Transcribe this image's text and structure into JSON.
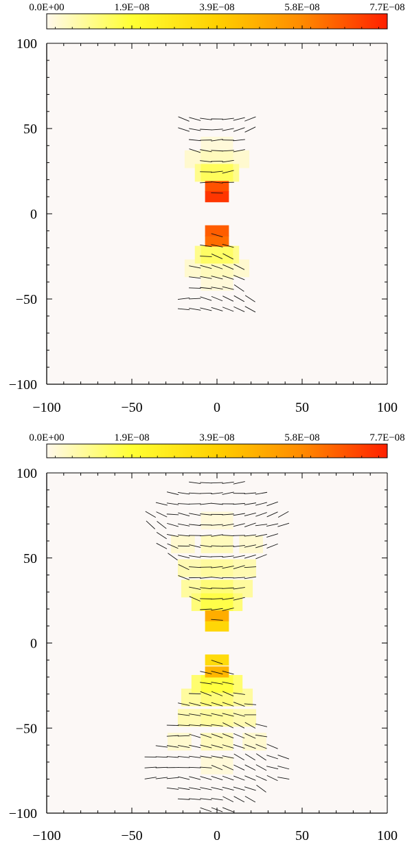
{
  "colorbar": {
    "tick_labels": [
      "0.0E+00",
      "1.9E−08",
      "3.9E−08",
      "5.8E−08",
      "7.7E−08"
    ],
    "colors": [
      "#fff8ec",
      "#ffff33",
      "#ffd000",
      "#ff8a00",
      "#ff2000"
    ],
    "range": [
      0,
      7.7e-08
    ]
  },
  "colors": {
    "background": "#fcf8f6",
    "axis": "#000000"
  },
  "chart_data": [
    {
      "type": "heatmap",
      "title": "",
      "xlabel": "",
      "ylabel": "",
      "xlim": [
        -100,
        100
      ],
      "ylim": [
        -100,
        100
      ],
      "xticks": [
        -100,
        -50,
        0,
        50,
        100
      ],
      "yticks": [
        -100,
        -50,
        0,
        50,
        100
      ],
      "x_tick_labels": [
        "−100",
        "−50",
        "0",
        "50",
        "100"
      ],
      "y_tick_labels": [
        "−100",
        "−50",
        "0",
        "50",
        "100"
      ],
      "cells": [
        {
          "x": 0,
          "y": 16,
          "value": 6.8e-08
        },
        {
          "x": 0,
          "y": 10,
          "value": 7.3e-08
        },
        {
          "x": 0,
          "y": -10,
          "value": 6.6e-08
        },
        {
          "x": 0,
          "y": -16,
          "value": 6.3e-08
        },
        {
          "x": 0,
          "y": 24,
          "value": 1.5e-08
        },
        {
          "x": -6,
          "y": 24,
          "value": 1e-08
        },
        {
          "x": 6,
          "y": 24,
          "value": 1e-08
        },
        {
          "x": 0,
          "y": 32,
          "value": 5e-09
        },
        {
          "x": -12,
          "y": 32,
          "value": 3e-09
        },
        {
          "x": 12,
          "y": 32,
          "value": 3e-09
        },
        {
          "x": 0,
          "y": 40,
          "value": 2e-09
        },
        {
          "x": 0,
          "y": -24,
          "value": 1.4e-08
        },
        {
          "x": -6,
          "y": -24,
          "value": 1e-08
        },
        {
          "x": 6,
          "y": -24,
          "value": 1e-08
        },
        {
          "x": 0,
          "y": -32,
          "value": 5e-09
        },
        {
          "x": -12,
          "y": -32,
          "value": 3e-09
        },
        {
          "x": 12,
          "y": -32,
          "value": 3e-09
        },
        {
          "x": 0,
          "y": -40,
          "value": 2e-09
        }
      ]
    },
    {
      "type": "heatmap",
      "title": "",
      "xlabel": "",
      "ylabel": "",
      "xlim": [
        -100,
        100
      ],
      "ylim": [
        -100,
        100
      ],
      "xticks": [
        -100,
        -50,
        0,
        50,
        100
      ],
      "yticks": [
        -100,
        -50,
        0,
        50,
        100
      ],
      "x_tick_labels": [
        "−100",
        "−50",
        "0",
        "50",
        "100"
      ],
      "y_tick_labels": [
        "−100",
        "−50",
        "0",
        "50",
        "100"
      ],
      "cells": [
        {
          "x": 0,
          "y": 16,
          "value": 4.8e-08
        },
        {
          "x": 0,
          "y": 10,
          "value": 3.6e-08
        },
        {
          "x": 0,
          "y": -10,
          "value": 3.4e-08
        },
        {
          "x": 0,
          "y": -17,
          "value": 4.6e-08
        },
        {
          "x": 0,
          "y": 24,
          "value": 1.7e-08
        },
        {
          "x": -8,
          "y": 24,
          "value": 1.2e-08
        },
        {
          "x": 8,
          "y": 24,
          "value": 1.2e-08
        },
        {
          "x": 0,
          "y": 32,
          "value": 1.2e-08
        },
        {
          "x": -14,
          "y": 32,
          "value": 8e-09
        },
        {
          "x": 14,
          "y": 32,
          "value": 8e-09
        },
        {
          "x": 0,
          "y": 44,
          "value": 8e-09
        },
        {
          "x": -16,
          "y": 44,
          "value": 6e-09
        },
        {
          "x": 16,
          "y": 44,
          "value": 6e-09
        },
        {
          "x": 0,
          "y": 58,
          "value": 5e-09
        },
        {
          "x": -20,
          "y": 58,
          "value": 3e-09
        },
        {
          "x": 20,
          "y": 58,
          "value": 3e-09
        },
        {
          "x": 0,
          "y": 72,
          "value": 2e-09
        },
        {
          "x": 0,
          "y": -24,
          "value": 1.8e-08
        },
        {
          "x": -8,
          "y": -24,
          "value": 1.3e-08
        },
        {
          "x": 8,
          "y": -24,
          "value": 1.3e-08
        },
        {
          "x": 0,
          "y": -32,
          "value": 1.2e-08
        },
        {
          "x": -14,
          "y": -32,
          "value": 8e-09
        },
        {
          "x": 14,
          "y": -32,
          "value": 8e-09
        },
        {
          "x": 0,
          "y": -44,
          "value": 8e-09
        },
        {
          "x": -16,
          "y": -44,
          "value": 6e-09
        },
        {
          "x": 16,
          "y": -44,
          "value": 6e-09
        },
        {
          "x": 0,
          "y": -58,
          "value": 5e-09
        },
        {
          "x": -22,
          "y": -58,
          "value": 3e-09
        },
        {
          "x": 22,
          "y": -58,
          "value": 3e-09
        },
        {
          "x": 0,
          "y": -72,
          "value": 2e-09
        }
      ]
    }
  ]
}
